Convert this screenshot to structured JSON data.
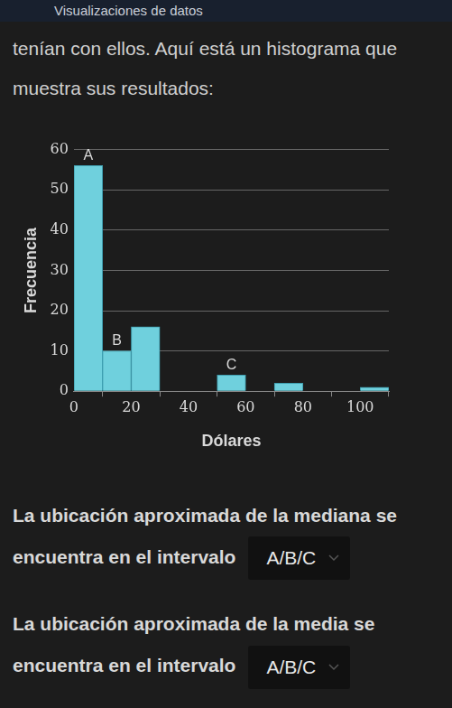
{
  "header": {
    "title": "Visualizaciones de datos"
  },
  "intro": "tenían con ellos. Aquí está un histograma que muestra sus resultados:",
  "chart_data": {
    "type": "histogram",
    "bins": [
      0,
      10,
      20,
      30,
      40,
      50,
      60,
      70,
      80,
      90,
      100,
      110
    ],
    "values": [
      56,
      10,
      16,
      0,
      0,
      4,
      0,
      2,
      0,
      0,
      1
    ],
    "color": "#6fd0dd",
    "xlabel": "Dólares",
    "ylabel": "Frecuencia",
    "xlim": [
      0,
      110
    ],
    "xticks": [
      0,
      20,
      40,
      60,
      80,
      100
    ],
    "ylim": [
      0,
      60
    ],
    "yticks": [
      0,
      10,
      20,
      30,
      40,
      50,
      60
    ],
    "grid": true,
    "annotations": [
      {
        "text": "A",
        "x": 5,
        "y": 56
      },
      {
        "text": "B",
        "x": 15,
        "y": 10
      },
      {
        "text": "C",
        "x": 55,
        "y": 4
      }
    ]
  },
  "questions": [
    {
      "text": "La ubicación aproximada de la mediana se encuentra en el intervalo",
      "answer": "A/B/C"
    },
    {
      "text": "La ubicación aproximada de la media se encuentra en el intervalo",
      "answer": "A/B/C"
    }
  ]
}
